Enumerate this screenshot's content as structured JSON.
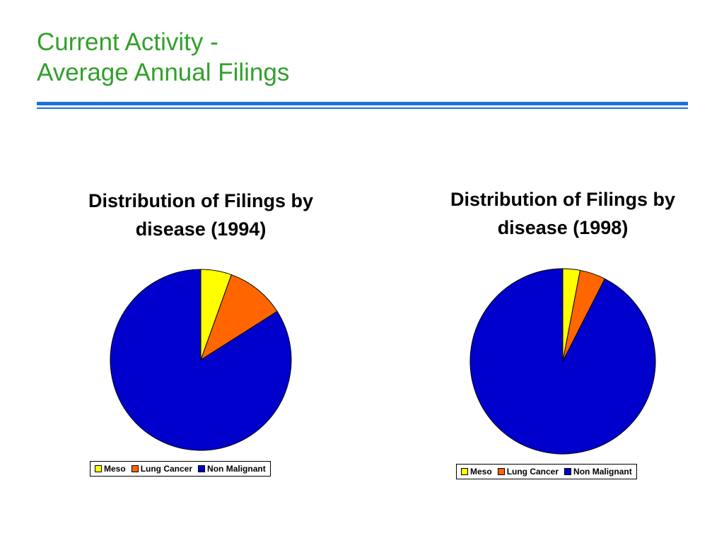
{
  "slide": {
    "title_line1": "Current Activity -",
    "title_line2": "Average Annual Filings",
    "title_color": "#33a02c",
    "rule_color": "#1f6fe0"
  },
  "chart_data": [
    {
      "type": "pie",
      "title_line1": "Distribution of Filings by",
      "title_line2": "disease (1994)",
      "categories": [
        "Meso",
        "Lung Cancer",
        "Non Malignant"
      ],
      "values": [
        5.5,
        10.5,
        84
      ],
      "colors": [
        "#ffff00",
        "#ff6600",
        "#0000cc"
      ],
      "legend_position": "bottom"
    },
    {
      "type": "pie",
      "title_line1": "Distribution of Filings by",
      "title_line2": "disease (1998)",
      "categories": [
        "Meso",
        "Lung Cancer",
        "Non Malignant"
      ],
      "values": [
        3,
        4.5,
        92.5
      ],
      "colors": [
        "#ffff00",
        "#ff6600",
        "#0000cc"
      ],
      "legend_position": "bottom"
    }
  ]
}
